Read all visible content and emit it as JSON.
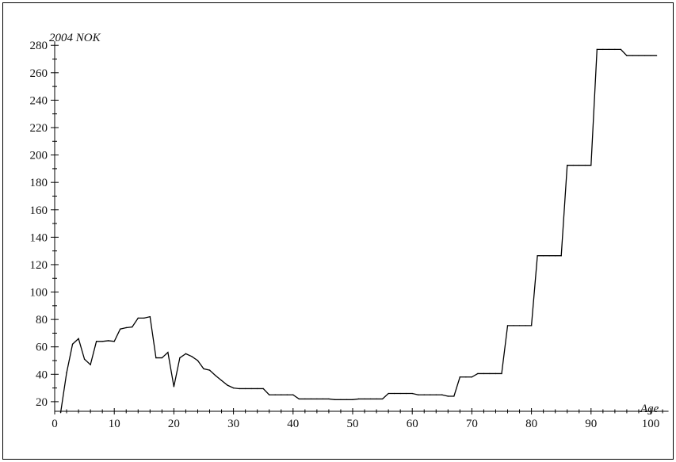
{
  "chart_data": {
    "type": "line",
    "ylabel": "2004 NOK",
    "xlabel": "Age",
    "xlim": [
      0,
      103
    ],
    "ylim": [
      13,
      283
    ],
    "xticks": [
      0,
      10,
      20,
      30,
      40,
      50,
      60,
      70,
      80,
      90,
      100
    ],
    "xtick_labels": [
      "0",
      "10",
      "20",
      "30",
      "40",
      "50",
      "60",
      "70",
      "80",
      "90",
      "100"
    ],
    "yticks": [
      20,
      40,
      60,
      80,
      100,
      120,
      140,
      160,
      180,
      200,
      220,
      240,
      260,
      280
    ],
    "ytick_labels": [
      "20",
      "40",
      "60",
      "80",
      "100",
      "120",
      "140",
      "160",
      "180",
      "200",
      "220",
      "240",
      "260",
      "280"
    ],
    "grid": false,
    "legend": "none",
    "line_color": "#000000",
    "series": [
      {
        "x": [
          1,
          2,
          3,
          4,
          5,
          6,
          7,
          8,
          9,
          10,
          11,
          12,
          13,
          14,
          15,
          16,
          17,
          18,
          19,
          20,
          21,
          22,
          23,
          24,
          25,
          26,
          27,
          28,
          29,
          30,
          31,
          32,
          33,
          34,
          35,
          36,
          37,
          38,
          39,
          40,
          41,
          42,
          43,
          44,
          45,
          46,
          47,
          48,
          49,
          50,
          51,
          52,
          53,
          54,
          55,
          56,
          57,
          58,
          59,
          60,
          61,
          62,
          63,
          64,
          65,
          66,
          67,
          68,
          69,
          70,
          71,
          72,
          73,
          74,
          75,
          76,
          77,
          78,
          79,
          80,
          81,
          82,
          83,
          84,
          85,
          86,
          87,
          88,
          89,
          90,
          91,
          92,
          93,
          94,
          95,
          96,
          97,
          98,
          99,
          100,
          101
        ],
        "values": [
          12,
          41,
          62,
          66,
          51,
          47,
          64,
          64,
          64.5,
          64,
          73,
          74,
          74.5,
          81,
          81,
          82,
          52,
          52,
          56,
          31,
          52,
          55,
          53,
          50,
          44,
          43,
          39,
          35.5,
          32,
          30,
          29.5,
          29.5,
          29.5,
          29.5,
          29.5,
          25,
          25,
          25,
          25,
          25,
          22,
          22,
          22,
          22,
          22,
          22,
          21.5,
          21.5,
          21.5,
          21.5,
          22,
          22,
          22,
          22,
          22,
          26,
          26,
          26,
          26,
          26,
          25,
          25,
          25,
          25,
          25,
          24,
          24,
          38,
          38,
          38,
          40.5,
          40.5,
          40.5,
          40.5,
          40.5,
          75.5,
          75.5,
          75.5,
          75.5,
          75.5,
          126.5,
          126.5,
          126.5,
          126.5,
          126.5,
          192.5,
          192.5,
          192.5,
          192.5,
          192.5,
          277,
          277,
          277,
          277,
          277,
          272.5,
          272.5,
          272.5,
          272.5,
          272.5,
          272.5
        ]
      }
    ]
  }
}
